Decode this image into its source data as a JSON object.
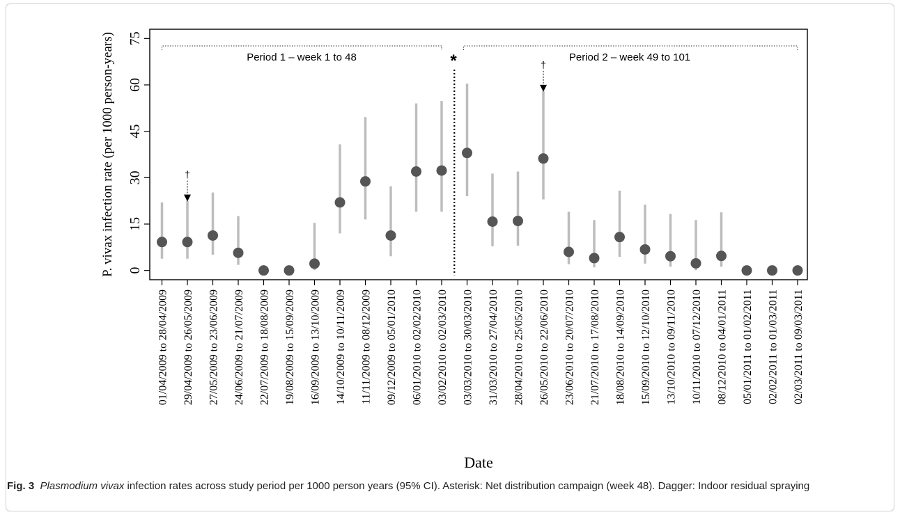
{
  "caption": {
    "label": "Fig. 3",
    "species": "Plasmodium vivax",
    "text": " infection rates across study period per 1000 person years (95% CI). Asterisk: Net distribution campaign (week 48). Dagger: Indoor residual spraying"
  },
  "chart_data": {
    "type": "scatter",
    "title": "",
    "xlabel": "Date",
    "ylabel": "P. vivax infection rate (per 1000 person-years)",
    "ylim": [
      -3,
      78
    ],
    "yticks": [
      0,
      15,
      30,
      45,
      60,
      75
    ],
    "grid": false,
    "categories": [
      "01/04/2009 to 28/04/2009",
      "29/04/2009 to 26/05/2009",
      "27/05/2009 to 23/06/2009",
      "24/06/2009 to 21/07/2009",
      "22/07/2009 to 18/08/2009",
      "19/08/2009 to 15/09/2009",
      "16/09/2009 to 13/10/2009",
      "14/10/2009 to 10/11/2009",
      "11/11/2009 to 08/12/2009",
      "09/12/2009 to 05/01/2010",
      "06/01/2010 to 02/02/2010",
      "03/02/2010 to 02/03/2010",
      "03/03/2010 to 30/03/2010",
      "31/03/2010 to 27/04/2010",
      "28/04/2010 to 25/05/2010",
      "26/05/2010 to 22/06/2010",
      "23/06/2010 to 20/07/2010",
      "21/07/2010 to 17/08/2010",
      "18/08/2010 to 14/09/2010",
      "15/09/2010 to 12/10/2010",
      "13/10/2010 to 09/11/2010",
      "10/11/2010 to 07/12/2010",
      "08/12/2010 to 04/01/2011",
      "05/01/2011 to 01/02/2011",
      "02/02/2011 to 01/03/2011",
      "02/03/2011 to 09/03/2011"
    ],
    "values": [
      9.2,
      9.2,
      11.3,
      5.7,
      0,
      0,
      2.2,
      22,
      28.8,
      11.3,
      32,
      32.3,
      38,
      15.8,
      16,
      36.2,
      6,
      4,
      10.8,
      6.8,
      4.6,
      2.3,
      4.7,
      0,
      0,
      0
    ],
    "ci_lower": [
      3.8,
      3.8,
      5.1,
      1.8,
      0,
      0,
      0.1,
      12,
      16.5,
      4.6,
      19,
      19,
      24,
      7.8,
      8,
      23,
      2,
      1,
      4.4,
      2.2,
      1.2,
      0.1,
      1.2,
      0,
      0,
      0
    ],
    "ci_upper": [
      22,
      22.5,
      25.2,
      17.6,
      0,
      0,
      15.4,
      40.8,
      49.6,
      27.2,
      54,
      54.8,
      60.4,
      31.3,
      32,
      58,
      19,
      16.3,
      25.8,
      21.3,
      18.3,
      16.3,
      18.8,
      0,
      0,
      0
    ],
    "annotations": {
      "period1": "Period 1 – week 1 to 48",
      "period2": "Period 2 – week 49 to 101",
      "asterisk": "*",
      "dagger": "†"
    },
    "dagger_indices": [
      1,
      15
    ],
    "campaign_after_index": 11
  }
}
